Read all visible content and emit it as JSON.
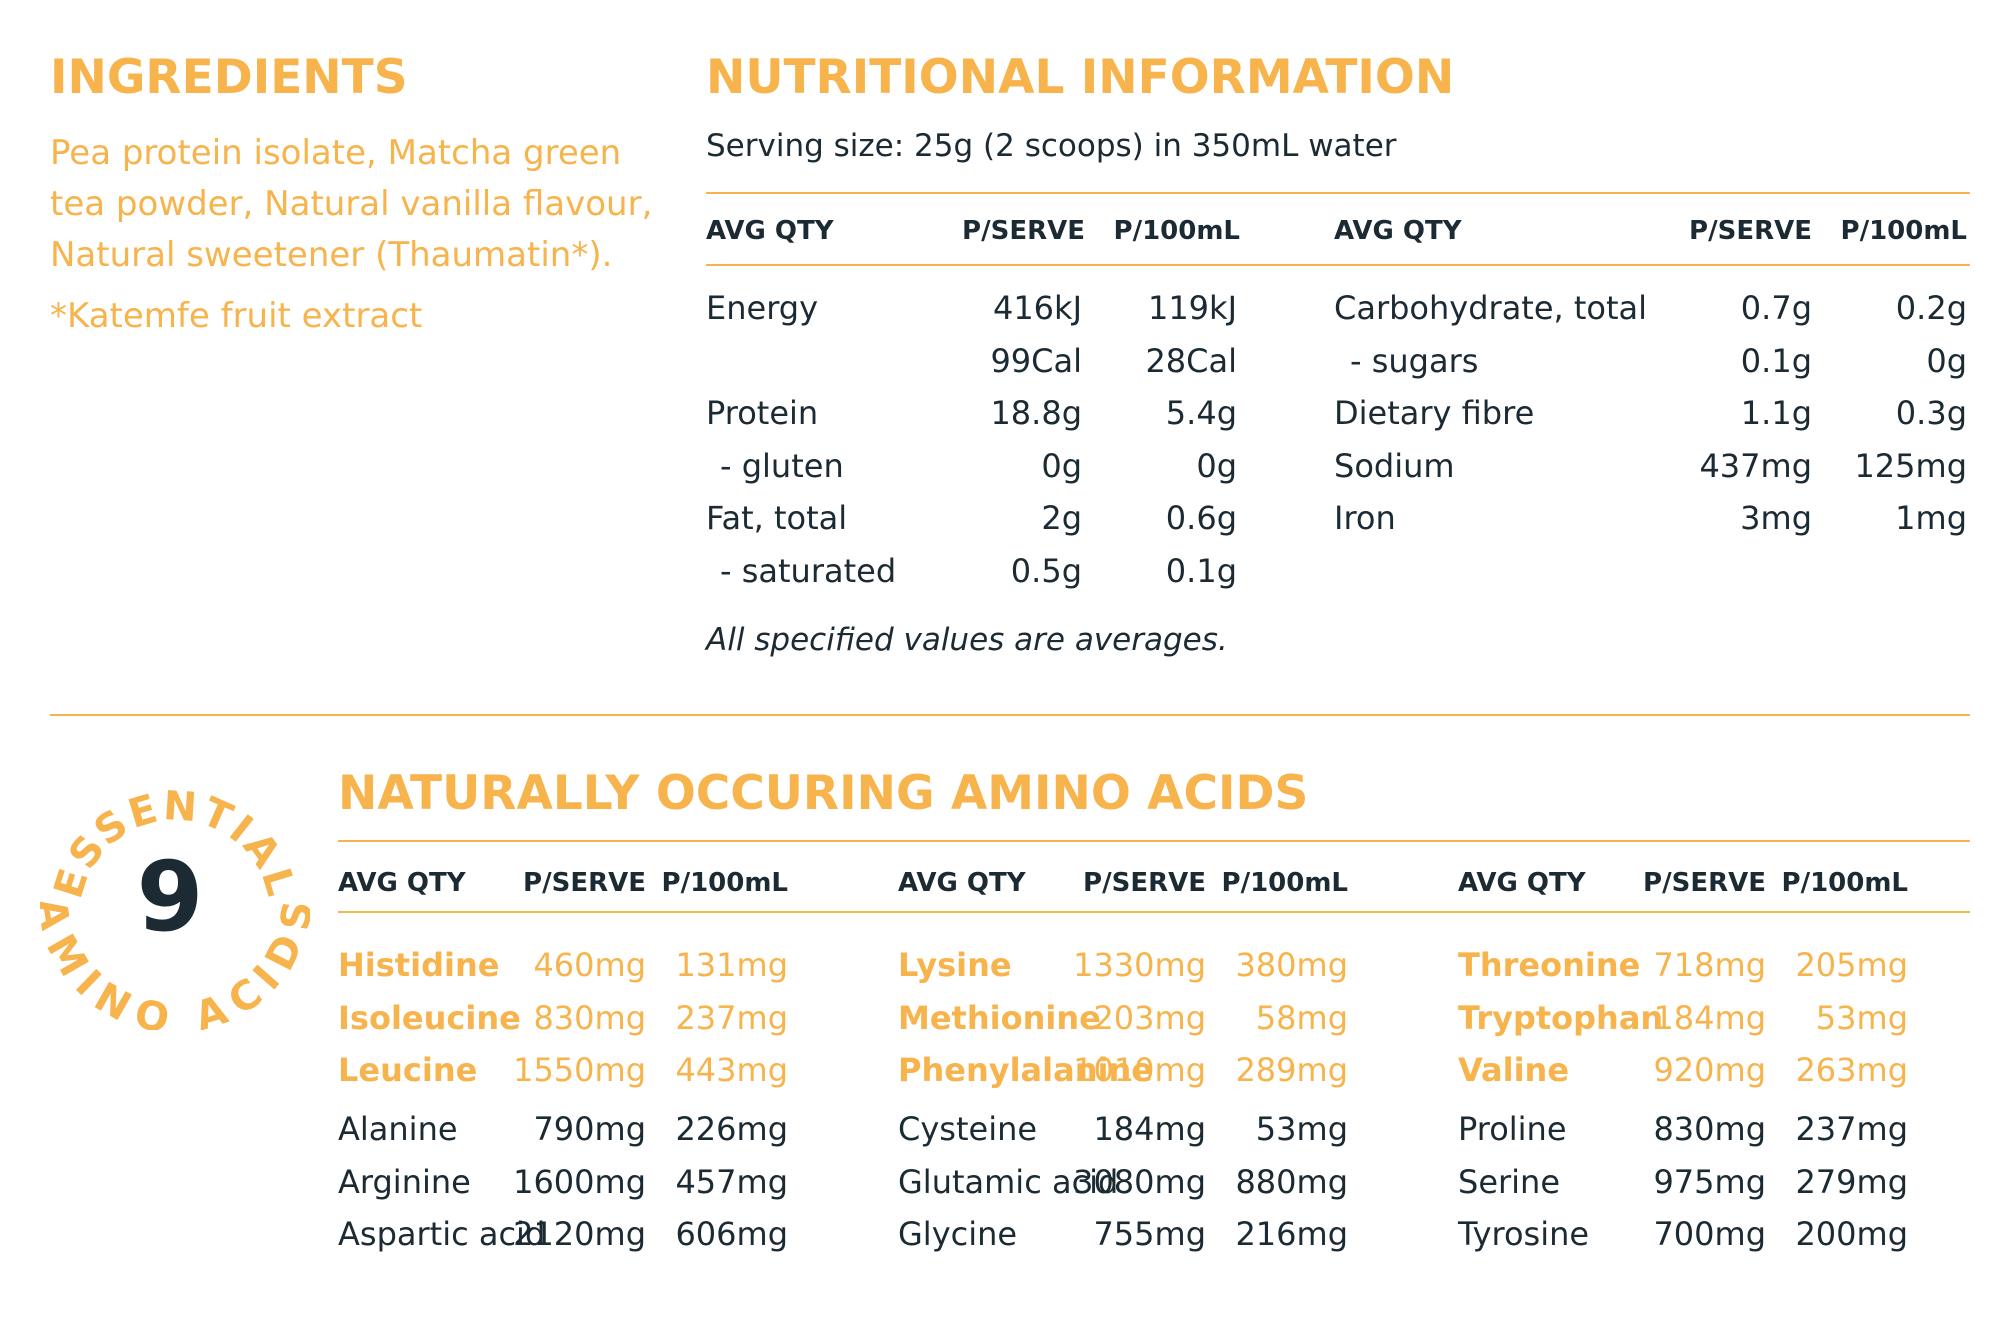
{
  "ingredients": {
    "title": "INGREDIENTS",
    "text": "Pea protein isolate, Matcha green tea powder, Natural vanilla flavour, Natural sweetener (Thaumatin*).",
    "note": "*Katemfe fruit extract"
  },
  "nutrition": {
    "title": "NUTRITIONAL INFORMATION",
    "serving": "Serving size: 25g (2 scoops) in 350mL water",
    "headers": {
      "qty": "AVG QTY",
      "serve": "P/SERVE",
      "per100": "P/100mL"
    },
    "left_rows": [
      {
        "name": "Energy",
        "serve": "416kJ",
        "per100": "119kJ"
      },
      {
        "name": "",
        "serve": "99Cal",
        "per100": "28Cal"
      },
      {
        "name": "Protein",
        "serve": "18.8g",
        "per100": "5.4g"
      },
      {
        "name": "- gluten",
        "serve": "0g",
        "per100": "0g"
      },
      {
        "name": "Fat, total",
        "serve": "2g",
        "per100": "0.6g"
      },
      {
        "name": "- saturated",
        "serve": "0.5g",
        "per100": "0.1g"
      }
    ],
    "right_rows": [
      {
        "name": "Carbohydrate, total",
        "serve": "0.7g",
        "per100": "0.2g"
      },
      {
        "name": "- sugars",
        "serve": "0.1g",
        "per100": "0g"
      },
      {
        "name": "Dietary fibre",
        "serve": "1.1g",
        "per100": "0.3g"
      },
      {
        "name": "Sodium",
        "serve": "437mg",
        "per100": "125mg"
      },
      {
        "name": "Iron",
        "serve": "3mg",
        "per100": "1mg"
      }
    ],
    "footnote": "All specified values are averages."
  },
  "badge": {
    "number": "9",
    "top_text": "ESSENTIAL",
    "bottom_text": "AMINO ACIDS"
  },
  "amino": {
    "title": "NATURALLY OCCURING AMINO ACIDS",
    "headers": {
      "qty": "AVG QTY",
      "serve": "P/SERVE",
      "per100": "P/100mL"
    },
    "columns": [
      {
        "essential": [
          {
            "name": "Histidine",
            "serve": "460mg",
            "per100": "131mg"
          },
          {
            "name": "Isoleucine",
            "serve": "830mg",
            "per100": "237mg"
          },
          {
            "name": "Leucine",
            "serve": "1550mg",
            "per100": "443mg"
          }
        ],
        "other": [
          {
            "name": "Alanine",
            "serve": "790mg",
            "per100": "226mg"
          },
          {
            "name": "Arginine",
            "serve": "1600mg",
            "per100": "457mg"
          },
          {
            "name": "Aspartic acid",
            "serve": "2120mg",
            "per100": "606mg"
          }
        ]
      },
      {
        "essential": [
          {
            "name": "Lysine",
            "serve": "1330mg",
            "per100": "380mg"
          },
          {
            "name": "Methionine",
            "serve": "203mg",
            "per100": "58mg"
          },
          {
            "name": "Phenylalanine",
            "serve": "1010mg",
            "per100": "289mg"
          }
        ],
        "other": [
          {
            "name": "Cysteine",
            "serve": "184mg",
            "per100": "53mg"
          },
          {
            "name": "Glutamic acid",
            "serve": "3080mg",
            "per100": "880mg"
          },
          {
            "name": "Glycine",
            "serve": "755mg",
            "per100": "216mg"
          }
        ]
      },
      {
        "essential": [
          {
            "name": "Threonine",
            "serve": "718mg",
            "per100": "205mg"
          },
          {
            "name": "Tryptophan",
            "serve": "184mg",
            "per100": "53mg"
          },
          {
            "name": "Valine",
            "serve": "920mg",
            "per100": "263mg"
          }
        ],
        "other": [
          {
            "name": "Proline",
            "serve": "830mg",
            "per100": "237mg"
          },
          {
            "name": "Serine",
            "serve": "975mg",
            "per100": "279mg"
          },
          {
            "name": "Tyrosine",
            "serve": "700mg",
            "per100": "200mg"
          }
        ]
      }
    ]
  },
  "colors": {
    "accent": "#f7b34c",
    "text": "#1b2a33"
  }
}
